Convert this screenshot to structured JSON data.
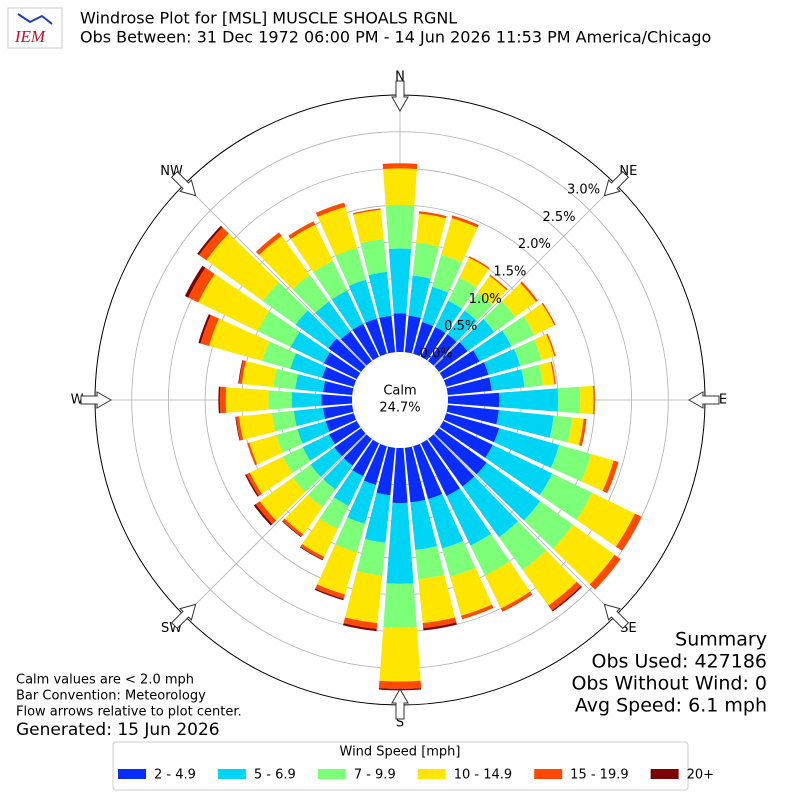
{
  "chart_data": {
    "type": "windrose",
    "title": "Windrose Plot for [MSL] MUSCLE SHOALS RGNL",
    "subtitle": "Obs Between: 31 Dec 1972 06:00 PM - 14 Jun 2026 11:53 PM America/Chicago",
    "logo": "IEM",
    "direction_labels": [
      "N",
      "NE",
      "E",
      "SE",
      "S",
      "SW",
      "W",
      "NW"
    ],
    "x": [
      0,
      10,
      20,
      30,
      40,
      50,
      60,
      70,
      80,
      90,
      100,
      110,
      120,
      130,
      140,
      150,
      160,
      170,
      180,
      190,
      200,
      210,
      220,
      230,
      240,
      250,
      260,
      270,
      280,
      290,
      300,
      310,
      320,
      330,
      340,
      350
    ],
    "xlim": [
      0,
      360
    ],
    "ylim": [
      0,
      3.5
    ],
    "yticks": [
      {
        "value": 0,
        "label": "0.0%"
      },
      {
        "value": 0.5,
        "label": "0.5%"
      },
      {
        "value": 1.0,
        "label": "1.0%"
      },
      {
        "value": 1.5,
        "label": "1.5%"
      },
      {
        "value": 2.0,
        "label": "2.0%"
      },
      {
        "value": 2.5,
        "label": "2.5%"
      },
      {
        "value": 3.0,
        "label": "3.0%"
      }
    ],
    "grid": true,
    "calm_label": "Calm",
    "calm_value": "24.7%",
    "legend_title": "Wind Speed [mph]",
    "series": [
      {
        "name": "2 - 4.9",
        "color": "#0a2dff",
        "values": [
          0.53,
          0.5,
          0.45,
          0.45,
          0.45,
          0.48,
          0.55,
          0.6,
          0.6,
          0.7,
          0.7,
          0.75,
          0.75,
          0.8,
          0.8,
          0.8,
          0.75,
          0.75,
          0.75,
          0.65,
          0.55,
          0.5,
          0.45,
          0.45,
          0.42,
          0.4,
          0.4,
          0.42,
          0.4,
          0.45,
          0.5,
          0.55,
          0.5,
          0.5,
          0.5,
          0.5
        ]
      },
      {
        "name": "5 - 6.9",
        "color": "#00d4f5",
        "values": [
          0.88,
          0.55,
          0.5,
          0.4,
          0.4,
          0.45,
          0.48,
          0.45,
          0.45,
          0.8,
          0.75,
          0.85,
          0.9,
          0.9,
          0.85,
          0.75,
          0.7,
          0.65,
          1.1,
          0.65,
          0.55,
          0.45,
          0.4,
          0.4,
          0.4,
          0.4,
          0.4,
          0.4,
          0.38,
          0.45,
          0.5,
          0.55,
          0.5,
          0.5,
          0.55,
          0.6
        ]
      },
      {
        "name": "7 - 9.9",
        "color": "#7dff7a",
        "values": [
          0.59,
          0.45,
          0.45,
          0.35,
          0.3,
          0.35,
          0.35,
          0.3,
          0.25,
          0.3,
          0.25,
          0.45,
          0.6,
          0.55,
          0.55,
          0.45,
          0.4,
          0.4,
          0.6,
          0.45,
          0.4,
          0.35,
          0.3,
          0.3,
          0.3,
          0.3,
          0.3,
          0.32,
          0.3,
          0.4,
          0.5,
          0.55,
          0.45,
          0.45,
          0.45,
          0.45
        ]
      },
      {
        "name": "10 - 14.9",
        "color": "#ffe600",
        "values": [
          0.5,
          0.4,
          0.52,
          0.3,
          0.28,
          0.35,
          0.3,
          0.18,
          0.16,
          0.18,
          0.16,
          0.32,
          0.65,
          0.7,
          0.6,
          0.5,
          0.55,
          0.6,
          0.73,
          0.65,
          0.6,
          0.42,
          0.45,
          0.55,
          0.5,
          0.38,
          0.45,
          0.58,
          0.43,
          0.75,
          0.9,
          0.95,
          0.65,
          0.55,
          0.58,
          0.4
        ]
      },
      {
        "name": "15 - 19.9",
        "color": "#ff4a00",
        "values": [
          0.07,
          0.03,
          0.04,
          0.02,
          0.02,
          0.03,
          0.02,
          0.02,
          0.02,
          0.02,
          0.04,
          0.07,
          0.1,
          0.1,
          0.08,
          0.05,
          0.05,
          0.07,
          0.1,
          0.08,
          0.06,
          0.04,
          0.04,
          0.07,
          0.05,
          0.03,
          0.04,
          0.08,
          0.04,
          0.12,
          0.15,
          0.12,
          0.06,
          0.05,
          0.06,
          0.02
        ]
      },
      {
        "name": "20+",
        "color": "#7f0000",
        "values": [
          0,
          0,
          0,
          0,
          0,
          0,
          0,
          0,
          0,
          0,
          0,
          0,
          0,
          0,
          0.02,
          0,
          0,
          0.03,
          0.02,
          0.03,
          0.02,
          0.01,
          0.01,
          0.03,
          0.02,
          0,
          0.01,
          0.02,
          0.01,
          0.03,
          0.05,
          0.03,
          0,
          0,
          0,
          0
        ]
      }
    ],
    "notes": [
      "Calm values are < 2.0 mph",
      "Bar Convention: Meteorology",
      "Flow arrows relative to plot center."
    ],
    "generated": "Generated: 15 Jun 2026",
    "summary": [
      "Summary",
      "Obs Used: 427186",
      "Obs Without Wind: 0",
      "Avg Speed: 6.1 mph"
    ]
  }
}
